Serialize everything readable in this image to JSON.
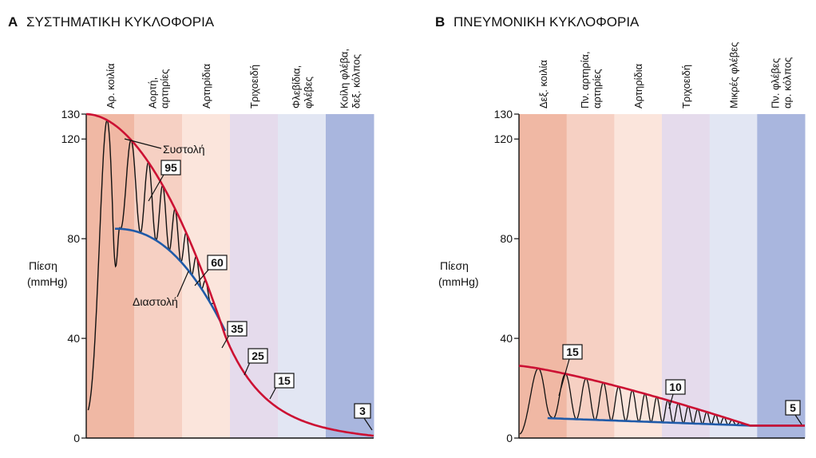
{
  "colors": {
    "systole_curve": "#cc1133",
    "diastole_curve": "#1f5aa8",
    "oscillation": "#111111",
    "regions": [
      "#f0b8a4",
      "#f6d0c3",
      "#fbe5dc",
      "#e5dbec",
      "#e2e6f3",
      "#a9b6de"
    ]
  },
  "panel_a": {
    "letter": "A",
    "title": "ΣΥΣΤΗΜΑΤΙΚΗ ΚΥΚΛΟΦΟΡΙΑ",
    "ylabel_line1": "Πίεση",
    "ylabel_line2": "(mmHg)",
    "y_ticks": [
      "130",
      "120",
      "80",
      "40",
      "0"
    ],
    "regions": [
      [
        "Αρ. κοιλία"
      ],
      [
        "Αορτή,",
        "αρτηρίες"
      ],
      [
        "Αρτηρίδια"
      ],
      [
        "Τριχοειδή"
      ],
      [
        "Φλεβίδια,",
        "φλέβες"
      ],
      [
        "Κοίλη φλέβα,",
        "δεξ. κόλπος"
      ]
    ],
    "systole_label": "Συστολή",
    "diastole_label": "Διαστολή",
    "boxes": [
      "95",
      "60",
      "35",
      "25",
      "15",
      "3"
    ]
  },
  "panel_b": {
    "letter": "B",
    "title": "ΠΝΕΥΜΟΝΙΚΗ ΚΥΚΛΟΦΟΡΙΑ",
    "ylabel_line1": "Πίεση",
    "ylabel_line2": "(mmHg)",
    "y_ticks": [
      "130",
      "120",
      "80",
      "40",
      "0"
    ],
    "regions": [
      [
        "Δεξ. κοιλία"
      ],
      [
        "Πν. αρτηρία,",
        "αρτηρίες"
      ],
      [
        "Αρτηρίδια"
      ],
      [
        "Τριχοειδή"
      ],
      [
        "Μικρές φλέβες"
      ],
      [
        "Πν. φλέβες",
        "αρ. κόλπος"
      ]
    ],
    "boxes": [
      "15",
      "10",
      "5"
    ]
  },
  "chart_data": [
    {
      "type": "line",
      "title": "ΣΥΣΤΗΜΑΤΙΚΗ ΚΥΚΛΟΦΟΡΙΑ",
      "ylabel": "Πίεση (mmHg)",
      "ylim": [
        0,
        130
      ],
      "y_ticks": [
        0,
        40,
        80,
        120,
        130
      ],
      "categories": [
        "Αρ. κοιλία",
        "Αορτή, αρτηρίες",
        "Αρτηρίδια",
        "Τριχοειδή",
        "Φλεβίδια, φλέβες",
        "Κοίλη φλέβα, δεξ. κόλπος"
      ],
      "series": [
        {
          "name": "Συστολή",
          "x": [
            0,
            0.5,
            1.0,
            1.5,
            2.0,
            2.5,
            3.0,
            3.5,
            4.0,
            4.5,
            5.0,
            5.5,
            6.0
          ],
          "values": [
            130,
            126,
            118,
            106,
            92,
            74,
            51,
            35,
            25,
            17,
            11,
            7,
            3
          ]
        },
        {
          "name": "Διαστολή",
          "x": [
            0.6,
            1.0,
            1.5,
            2.0,
            2.5,
            2.9
          ],
          "values": [
            84,
            83,
            80,
            72,
            59,
            43
          ]
        }
      ],
      "labeled_pressures": [
        95,
        60,
        35,
        25,
        15,
        3
      ]
    },
    {
      "type": "line",
      "title": "ΠΝΕΥΜΟΝΙΚΗ ΚΥΚΛΟΦΟΡΙΑ",
      "ylabel": "Πίεση (mmHg)",
      "ylim": [
        0,
        130
      ],
      "y_ticks": [
        0,
        40,
        80,
        120,
        130
      ],
      "categories": [
        "Δεξ. κοιλία",
        "Πν. αρτηρία, αρτηρίες",
        "Αρτηρίδια",
        "Τριχοειδή",
        "Μικρές φλέβες",
        "Πν. φλέβες αρ. κόλπος"
      ],
      "series": [
        {
          "name": "Συστολή",
          "x": [
            0,
            1,
            2,
            3,
            4,
            5,
            6
          ],
          "values": [
            29,
            25,
            19,
            14,
            9,
            5,
            5
          ]
        },
        {
          "name": "Διαστολή",
          "x": [
            0.6,
            2,
            3,
            4,
            5,
            6
          ],
          "values": [
            8,
            7,
            6,
            5,
            5,
            5
          ]
        }
      ],
      "labeled_pressures": [
        15,
        10,
        5
      ]
    }
  ]
}
